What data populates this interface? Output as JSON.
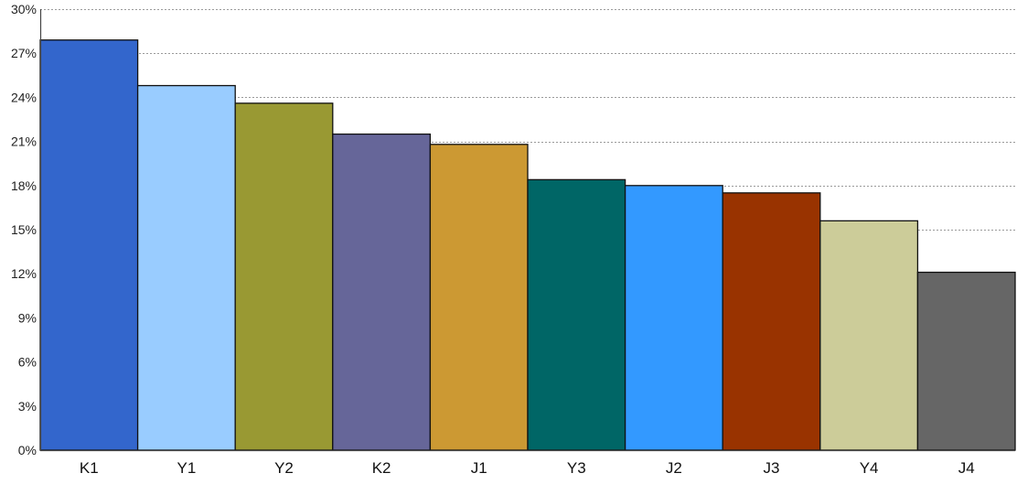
{
  "chart_data": {
    "type": "bar",
    "title": "",
    "xlabel": "",
    "ylabel": "",
    "ylim": [
      0,
      30
    ],
    "y_ticks": [
      "0%",
      "3%",
      "6%",
      "9%",
      "12%",
      "15%",
      "18%",
      "21%",
      "24%",
      "27%",
      "30%"
    ],
    "y_tick_values": [
      0,
      3,
      6,
      9,
      12,
      15,
      18,
      21,
      24,
      27,
      30
    ],
    "grid": "horizontal-dotted",
    "legend": "none",
    "categories": [
      "K1",
      "Y1",
      "Y2",
      "K2",
      "J1",
      "Y3",
      "J2",
      "J3",
      "Y4",
      "J4"
    ],
    "values": [
      27.9,
      24.8,
      23.6,
      21.5,
      20.8,
      18.4,
      18.0,
      17.5,
      15.6,
      12.1
    ],
    "colors": [
      "#3366CC",
      "#99CCFF",
      "#999933",
      "#666699",
      "#CC9933",
      "#006666",
      "#3399FF",
      "#993300",
      "#CCCC99",
      "#666666"
    ]
  }
}
